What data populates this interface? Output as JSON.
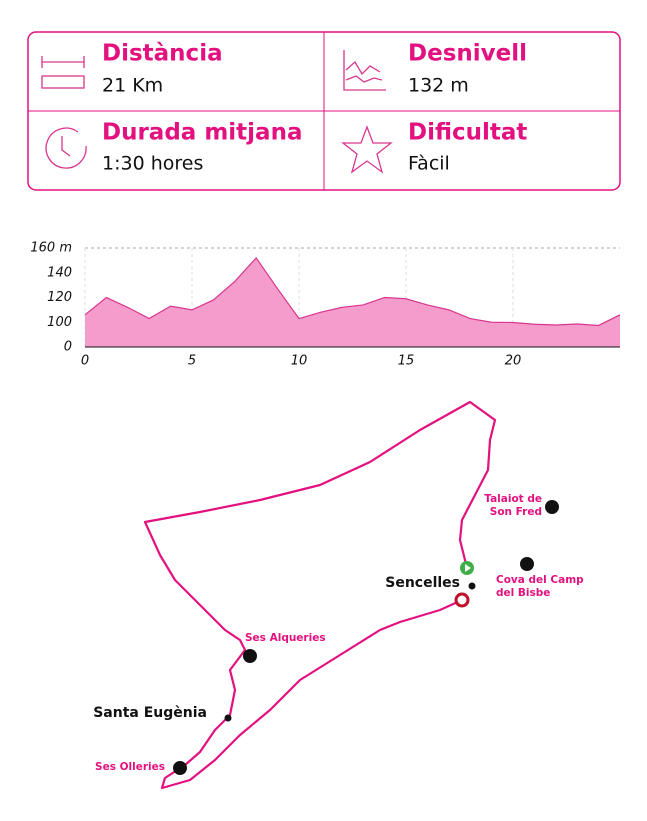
{
  "stats": [
    {
      "title": "Distància",
      "value": "21 Km"
    },
    {
      "title": "Desnivell",
      "value": "132 m"
    },
    {
      "title": "Durada mitjana",
      "value": "1:30 hores"
    },
    {
      "title": "Dificultat",
      "value": "Fàcil"
    }
  ],
  "chart_data": {
    "type": "area",
    "color": "#f49ccb",
    "line_color": "#d9368f",
    "x": [
      0,
      1,
      2,
      3,
      4,
      5,
      6,
      7,
      8,
      9,
      10,
      11,
      12,
      13,
      14,
      15,
      16,
      17,
      18,
      19,
      20,
      21,
      22,
      23,
      24,
      25
    ],
    "values": [
      106,
      120,
      112,
      103,
      113,
      110,
      118,
      133,
      152,
      127,
      103,
      108,
      112,
      114,
      120,
      119,
      114,
      110,
      103,
      100,
      99,
      92,
      89,
      93,
      87,
      106
    ],
    "xlim": [
      0,
      25
    ],
    "xticks": [
      0,
      5,
      10,
      15,
      20
    ],
    "ylim": [
      0,
      160
    ],
    "yticks": [
      0,
      100,
      120,
      140,
      {
        "value": 160,
        "label": "160 m"
      }
    ],
    "grid": true
  },
  "map": {
    "places": [
      {
        "name": "Sencelles"
      },
      {
        "name": "Santa Eugènia"
      }
    ],
    "points": [
      {
        "lines": [
          "Talaiot de",
          "Son Fred"
        ]
      },
      {
        "lines": [
          "Cova del Camp",
          "del Bisbe"
        ]
      },
      {
        "lines": [
          "Ses Alqueries"
        ]
      },
      {
        "lines": [
          "Ses Olleries"
        ]
      }
    ]
  }
}
